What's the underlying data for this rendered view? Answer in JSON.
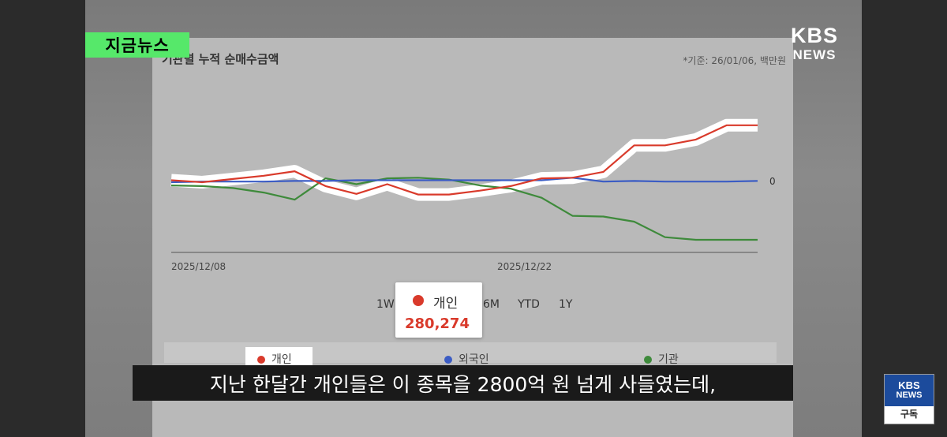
{
  "overlay": {
    "news_tag": "지금뉴스",
    "broadcaster_line1": "KBS",
    "broadcaster_line2": "NEWS",
    "subtitle": "지난 한달간 개인들은 이 종목을 2800억 원 넘게 사들였는데,",
    "subscribe_top1": "KBS",
    "subscribe_top2": "NEWS",
    "subscribe_label": "구독"
  },
  "chart_header": {
    "title": "기관별 누적 순매수금액",
    "note": "*기준: 26/01/06, 백만원"
  },
  "chart_data": {
    "type": "line",
    "x_tick_labels": [
      "2025/12/08",
      "2025/12/22"
    ],
    "zero_label": "0",
    "series": [
      {
        "name": "개인",
        "color": "#d93a2b",
        "values": [
          0.3,
          0.0,
          0.5,
          1.0,
          1.7,
          -0.6,
          -1.8,
          -0.3,
          -1.9,
          -1.9,
          -1.3,
          -0.6,
          0.6,
          0.7,
          1.6,
          5.7,
          5.7,
          6.6,
          8.8,
          8.8
        ]
      },
      {
        "name": "외국인",
        "color": "#3b5cc4",
        "values": [
          0.0,
          0.1,
          0.1,
          0.1,
          0.2,
          0.2,
          0.3,
          0.3,
          0.3,
          0.3,
          0.3,
          0.3,
          0.3,
          0.7,
          0.1,
          0.2,
          0.1,
          0.1,
          0.1,
          0.2
        ]
      },
      {
        "name": "기관",
        "color": "#3e8a3b",
        "values": [
          -0.5,
          -0.6,
          -0.9,
          -1.6,
          -2.7,
          0.6,
          -0.3,
          0.6,
          0.7,
          0.4,
          -0.5,
          -1.0,
          -2.4,
          -5.2,
          -5.3,
          -6.1,
          -8.5,
          -8.9,
          -8.9,
          -8.9
        ]
      }
    ],
    "range_buttons": [
      "1W",
      "6M",
      "YTD",
      "1Y"
    ],
    "tooltip": {
      "series": "개인",
      "value": "280,274"
    },
    "legend": [
      "개인",
      "외국인",
      "기관"
    ]
  }
}
